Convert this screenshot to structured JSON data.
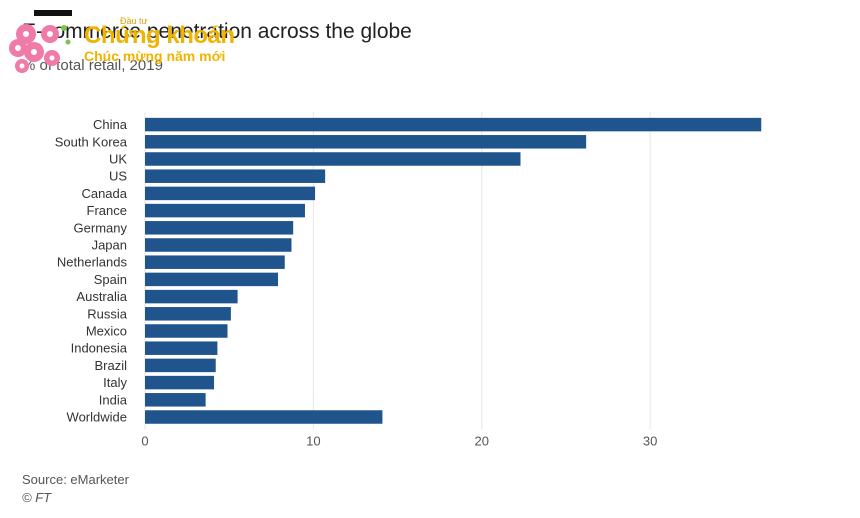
{
  "header": {
    "title": "E-commerce penetration across the globe",
    "subtitle": "% of total retail, 2019"
  },
  "watermark": {
    "line_small": "Đầu tư",
    "line_big": "Chứng khoán",
    "line_sub": "Chúc mừng năm mới"
  },
  "footer": {
    "source": "Source: eMarketer",
    "credit": "© FT"
  },
  "colors": {
    "bar": "#1f548c",
    "grid": "#e6e6e6"
  },
  "chart_data": {
    "type": "bar",
    "orientation": "horizontal",
    "categories": [
      "China",
      "South Korea",
      "UK",
      "US",
      "Canada",
      "France",
      "Germany",
      "Japan",
      "Netherlands",
      "Spain",
      "Australia",
      "Russia",
      "Mexico",
      "Indonesia",
      "Brazil",
      "Italy",
      "India",
      "Worldwide"
    ],
    "values": [
      36.6,
      26.2,
      22.3,
      10.7,
      10.1,
      9.5,
      8.8,
      8.7,
      8.3,
      7.9,
      5.5,
      5.1,
      4.9,
      4.3,
      4.2,
      4.1,
      3.6,
      14.1
    ],
    "xlim": [
      0,
      37
    ],
    "xticks": [
      0,
      10,
      20,
      30
    ],
    "grid": true,
    "title": "E-commerce penetration across the globe",
    "subtitle": "% of total retail, 2019"
  }
}
